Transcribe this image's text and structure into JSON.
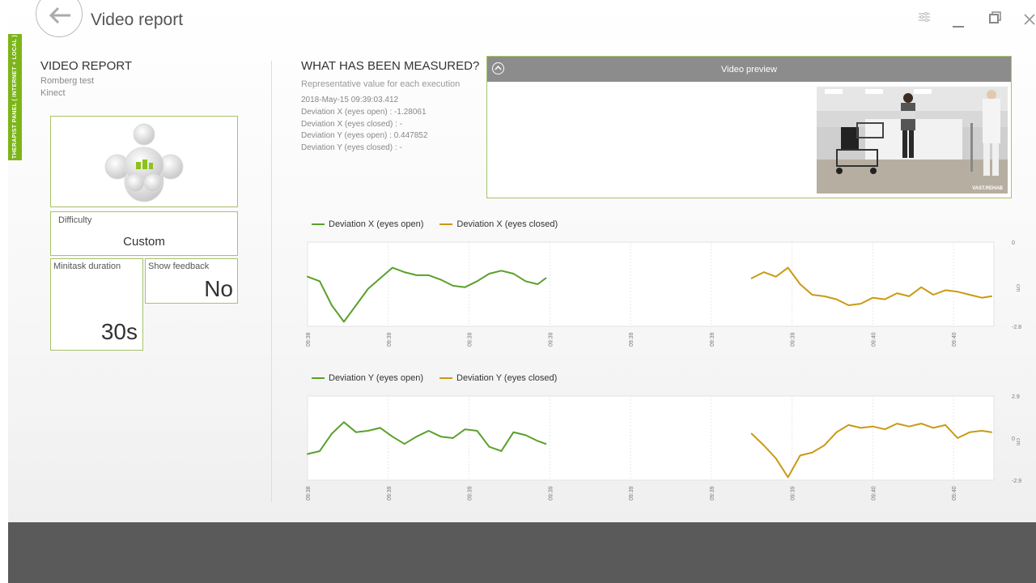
{
  "app": {
    "title": "Video report",
    "side_tab": "THERAPIST PANEL  ( INTERNET + LOCAL )"
  },
  "left_panel": {
    "title": "VIDEO REPORT",
    "test_name": "Romberg test",
    "device": "Kinect",
    "difficulty_label": "Difficulty",
    "difficulty_value": "Custom",
    "minitask_label": "Minitask duration",
    "minitask_value": "30s",
    "feedback_label": "Show feedback",
    "feedback_value": "No"
  },
  "measured": {
    "title": "WHAT HAS BEEN MEASURED?",
    "subtitle": "Representative value for each execution",
    "timestamp": "2018-May-15 09:39:03.412",
    "lines": [
      "Deviation X (eyes open)  :  -1.28061",
      "Deviation X (eyes closed)  :  -",
      "Deviation Y (eyes open)  :  0.447852",
      "Deviation Y (eyes closed)  :  -"
    ]
  },
  "video_preview": {
    "title": "Video preview",
    "watermark": "VAST.REHAB"
  },
  "colors": {
    "accent": "#7cb518",
    "series_open": "#5aa02c",
    "series_closed": "#c99a14",
    "panel_border": "#a8c26a"
  },
  "chart_data": [
    {
      "type": "line",
      "ylim": [
        -2.8,
        0
      ],
      "yticks": [
        "0",
        "-2.8"
      ],
      "ylabel": "cm",
      "xticks": [
        "09:38",
        "09:39",
        "09:39",
        "09:39",
        "09:39",
        "09:39",
        "09:39",
        "09:40",
        "09:40"
      ],
      "series": [
        {
          "name": "Deviation X (eyes open)",
          "color": "#5aa02c",
          "x": [
            0,
            0.15,
            0.3,
            0.45,
            0.6,
            0.75,
            0.9,
            1.05,
            1.2,
            1.35,
            1.5,
            1.65,
            1.8,
            1.95,
            2.1,
            2.25,
            2.4,
            2.55,
            2.7,
            2.85,
            2.95
          ],
          "y": [
            -1.15,
            -1.3,
            -2.1,
            -2.65,
            -2.1,
            -1.55,
            -1.2,
            -0.85,
            -1.0,
            -1.1,
            -1.1,
            -1.25,
            -1.45,
            -1.5,
            -1.3,
            -1.05,
            -0.95,
            -1.05,
            -1.3,
            -1.4,
            -1.2
          ]
        },
        {
          "name": "Deviation X (eyes closed)",
          "color": "#c99a14",
          "x": [
            5.5,
            5.65,
            5.8,
            5.95,
            6.1,
            6.25,
            6.4,
            6.55,
            6.7,
            6.85,
            7.0,
            7.15,
            7.3,
            7.45,
            7.6,
            7.75,
            7.9,
            8.05,
            8.2,
            8.35,
            8.47
          ],
          "y": [
            -1.2,
            -1.0,
            -1.15,
            -0.85,
            -1.4,
            -1.75,
            -1.8,
            -1.9,
            -2.1,
            -2.05,
            -1.85,
            -1.9,
            -1.7,
            -1.8,
            -1.5,
            -1.75,
            -1.6,
            -1.65,
            -1.75,
            -1.85,
            -1.8
          ]
        }
      ]
    },
    {
      "type": "line",
      "ylim": [
        -2.9,
        2.9
      ],
      "yticks": [
        "2.9",
        "0",
        "-2.9"
      ],
      "ylabel": "cm",
      "xticks": [
        "09:38",
        "09:39",
        "09:39",
        "09:39",
        "09:39",
        "09:39",
        "09:39",
        "09:40",
        "09:40"
      ],
      "series": [
        {
          "name": "Deviation Y (eyes open)",
          "color": "#5aa02c",
          "x": [
            0,
            0.15,
            0.3,
            0.45,
            0.6,
            0.75,
            0.9,
            1.05,
            1.2,
            1.35,
            1.5,
            1.65,
            1.8,
            1.95,
            2.1,
            2.25,
            2.4,
            2.55,
            2.7,
            2.85,
            2.95
          ],
          "y": [
            -1.1,
            -0.9,
            0.3,
            1.1,
            0.4,
            0.5,
            0.7,
            0.1,
            -0.4,
            0.1,
            0.5,
            0.1,
            0.0,
            0.6,
            0.5,
            -0.6,
            -0.9,
            0.4,
            0.2,
            -0.2,
            -0.4
          ]
        },
        {
          "name": "Deviation Y (eyes closed)",
          "color": "#c99a14",
          "x": [
            5.5,
            5.65,
            5.8,
            5.95,
            6.1,
            6.25,
            6.4,
            6.55,
            6.7,
            6.85,
            7.0,
            7.15,
            7.3,
            7.45,
            7.6,
            7.75,
            7.9,
            8.05,
            8.2,
            8.35,
            8.47
          ],
          "y": [
            0.3,
            -0.5,
            -1.4,
            -2.7,
            -1.2,
            -1.0,
            -0.5,
            0.4,
            0.9,
            0.7,
            0.8,
            0.6,
            1.0,
            0.8,
            1.0,
            0.7,
            0.9,
            0.0,
            0.4,
            0.5,
            0.4
          ]
        }
      ]
    }
  ]
}
